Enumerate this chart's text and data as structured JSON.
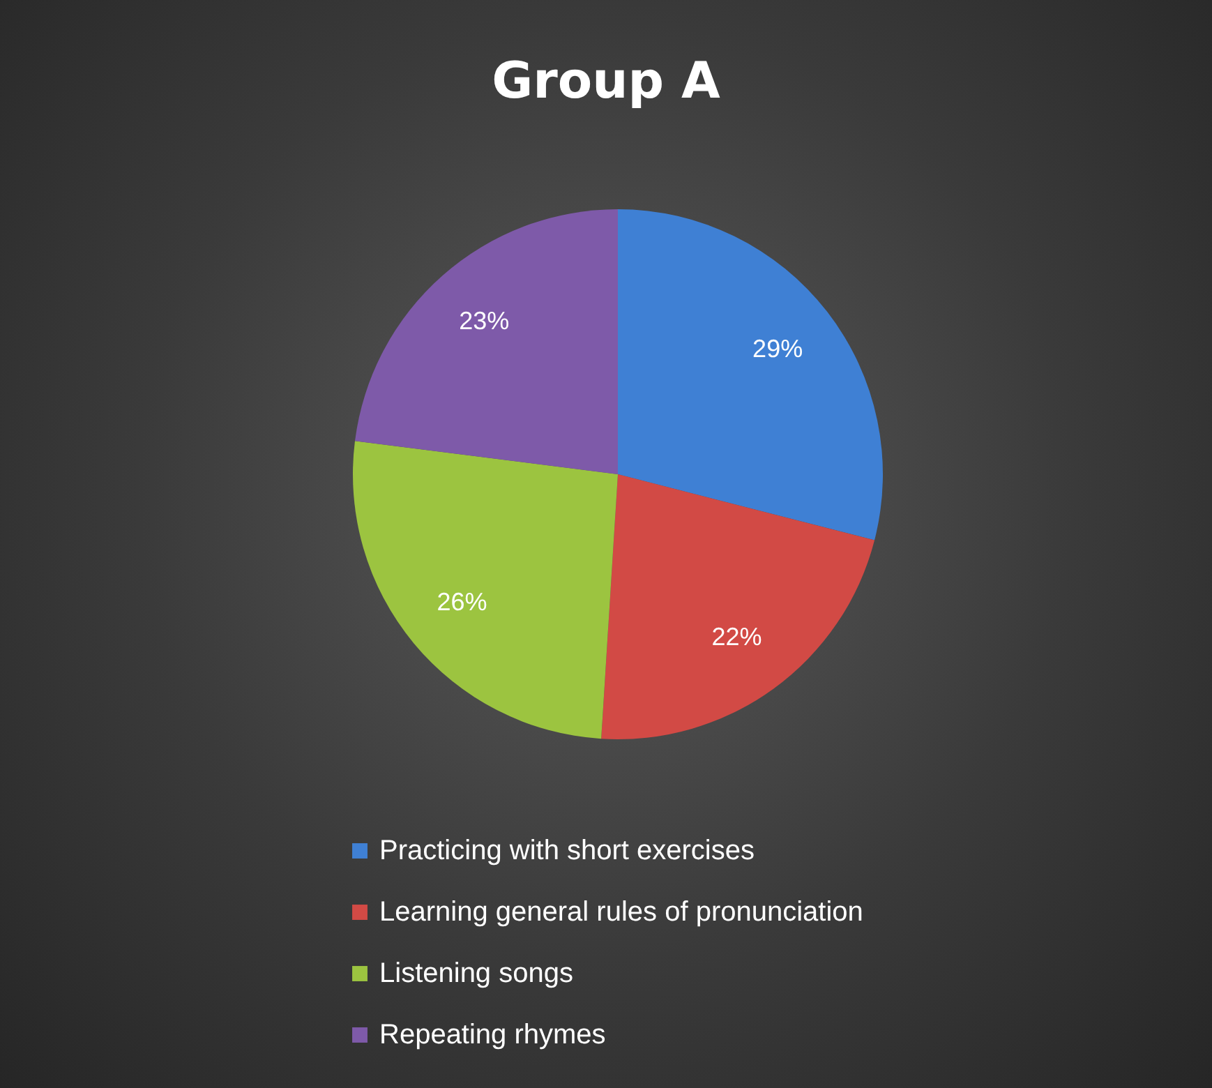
{
  "chart_data": {
    "type": "pie",
    "title": "Group A",
    "categories": [
      "Practicing with short exercises",
      "Learning general rules of pronunciation",
      "Listening songs",
      "Repeating rhymes"
    ],
    "values": [
      29,
      22,
      26,
      23
    ],
    "value_labels": [
      "29%",
      "22%",
      "26%",
      "23%"
    ],
    "colors": [
      "#3f80d4",
      "#d24a45",
      "#9cc440",
      "#7e5aa9"
    ],
    "legend": "bottom"
  }
}
